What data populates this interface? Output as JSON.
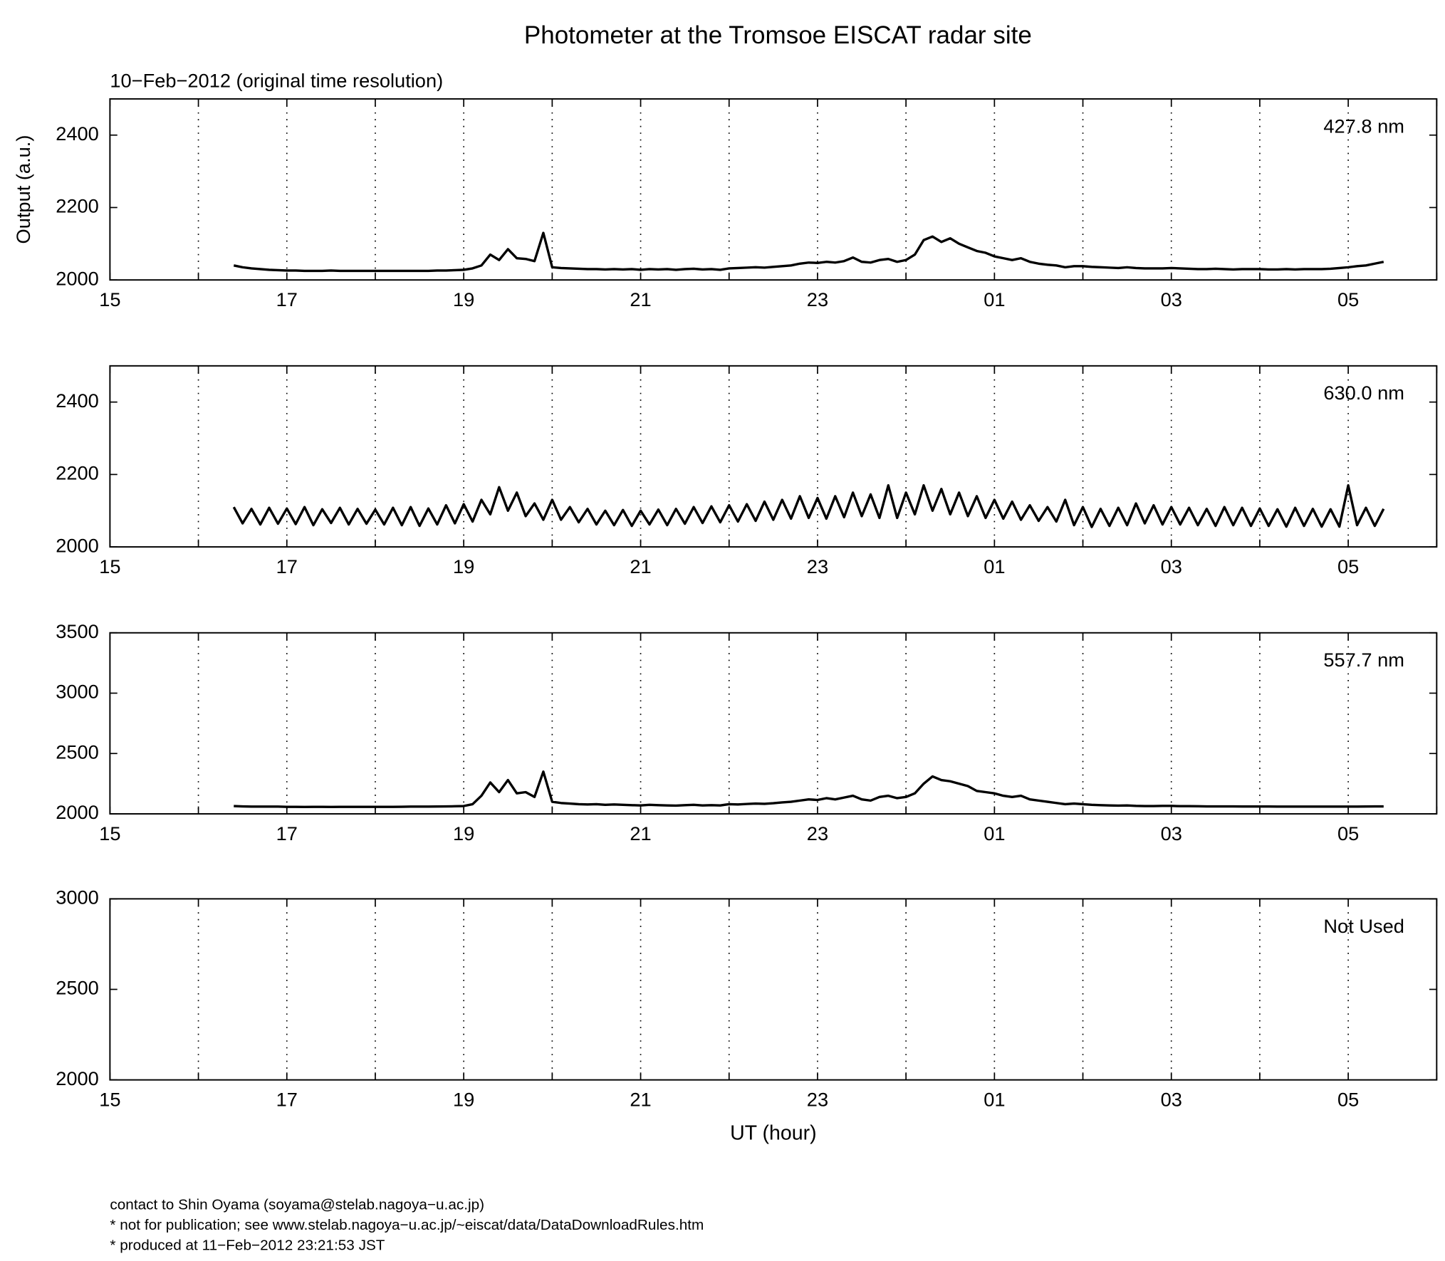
{
  "title": "Photometer at the Tromsoe EISCAT radar site",
  "subtitle": "10−Feb−2012 (original time resolution)",
  "footer": [
    "contact to Shin Oyama (soyama@stelab.nagoya−u.ac.jp)",
    "* not for publication; see www.stelab.nagoya−u.ac.jp/~eiscat/data/DataDownloadRules.htm",
    "* produced at 11−Feb−2012 23:21:53 JST"
  ],
  "chart_data": [
    {
      "type": "line",
      "ylabel": "Output (a.u.)",
      "annotation": "427.8 nm",
      "grid": true,
      "xlim": [
        15,
        30
      ],
      "ylim": [
        2000,
        2500
      ],
      "yticks": [
        2000,
        2200,
        2400
      ],
      "xticks": [
        15,
        {
          "value": 16,
          "label": null
        },
        17,
        {
          "value": 18,
          "label": null
        },
        19,
        {
          "value": 20,
          "label": null
        },
        21,
        {
          "value": 22,
          "label": null
        },
        23,
        {
          "value": 24,
          "label": null
        },
        {
          "value": 25,
          "label": "01"
        },
        {
          "value": 26,
          "label": null
        },
        {
          "value": 27,
          "label": "03"
        },
        {
          "value": 28,
          "label": null
        },
        {
          "value": 29,
          "label": "05"
        },
        {
          "value": 30,
          "label": null
        }
      ],
      "x": [
        16.4,
        16.5,
        16.6,
        16.7,
        16.8,
        16.9,
        17.0,
        17.1,
        17.2,
        17.3,
        17.4,
        17.5,
        17.6,
        17.7,
        17.8,
        17.9,
        18.0,
        18.1,
        18.2,
        18.3,
        18.4,
        18.5,
        18.6,
        18.7,
        18.8,
        18.9,
        19.0,
        19.1,
        19.2,
        19.3,
        19.4,
        19.5,
        19.6,
        19.7,
        19.8,
        19.9,
        20.0,
        20.1,
        20.2,
        20.3,
        20.4,
        20.5,
        20.6,
        20.7,
        20.8,
        20.9,
        21.0,
        21.1,
        21.2,
        21.3,
        21.4,
        21.5,
        21.6,
        21.7,
        21.8,
        21.9,
        22.0,
        22.1,
        22.2,
        22.3,
        22.4,
        22.5,
        22.6,
        22.7,
        22.8,
        22.9,
        23.0,
        23.1,
        23.2,
        23.3,
        23.4,
        23.5,
        23.6,
        23.7,
        23.8,
        23.9,
        24.0,
        24.1,
        24.2,
        24.3,
        24.4,
        24.5,
        24.6,
        24.7,
        24.8,
        24.9,
        25.0,
        25.1,
        25.2,
        25.3,
        25.4,
        25.5,
        25.6,
        25.7,
        25.8,
        25.9,
        26.0,
        26.1,
        26.2,
        26.3,
        26.4,
        26.5,
        26.6,
        26.7,
        26.8,
        26.9,
        27.0,
        27.1,
        27.2,
        27.3,
        27.4,
        27.5,
        27.6,
        27.7,
        27.8,
        27.9,
        28.0,
        28.1,
        28.2,
        28.3,
        28.4,
        28.5,
        28.6,
        28.7,
        28.8,
        28.9,
        29.0,
        29.1,
        29.2,
        29.3,
        29.4
      ],
      "series": [
        {
          "color": "#000000",
          "values": [
            2040,
            2035,
            2032,
            2030,
            2028,
            2027,
            2026,
            2026,
            2025,
            2025,
            2025,
            2026,
            2025,
            2025,
            2025,
            2025,
            2025,
            2025,
            2025,
            2025,
            2025,
            2025,
            2025,
            2026,
            2026,
            2027,
            2028,
            2032,
            2040,
            2070,
            2055,
            2085,
            2060,
            2058,
            2052,
            2130,
            2035,
            2033,
            2032,
            2031,
            2030,
            2030,
            2029,
            2030,
            2029,
            2030,
            2028,
            2030,
            2029,
            2030,
            2028,
            2030,
            2031,
            2029,
            2030,
            2028,
            2032,
            2033,
            2034,
            2035,
            2034,
            2036,
            2038,
            2040,
            2045,
            2048,
            2047,
            2050,
            2048,
            2052,
            2062,
            2050,
            2048,
            2055,
            2058,
            2050,
            2055,
            2070,
            2110,
            2120,
            2105,
            2115,
            2100,
            2090,
            2080,
            2075,
            2065,
            2060,
            2055,
            2060,
            2050,
            2045,
            2042,
            2040,
            2035,
            2038,
            2038,
            2036,
            2035,
            2034,
            2033,
            2035,
            2033,
            2032,
            2032,
            2032,
            2033,
            2032,
            2031,
            2030,
            2030,
            2031,
            2030,
            2029,
            2030,
            2030,
            2030,
            2029,
            2029,
            2030,
            2029,
            2030,
            2030,
            2030,
            2031,
            2033,
            2035,
            2038,
            2040,
            2045,
            2050
          ]
        }
      ]
    },
    {
      "type": "line",
      "annotation": "630.0 nm",
      "grid": true,
      "xlim": [
        15,
        30
      ],
      "ylim": [
        2000,
        2500
      ],
      "yticks": [
        2000,
        2200,
        2400
      ],
      "xticks": [
        15,
        {
          "value": 16,
          "label": null
        },
        17,
        {
          "value": 18,
          "label": null
        },
        19,
        {
          "value": 20,
          "label": null
        },
        21,
        {
          "value": 22,
          "label": null
        },
        23,
        {
          "value": 24,
          "label": null
        },
        {
          "value": 25,
          "label": "01"
        },
        {
          "value": 26,
          "label": null
        },
        {
          "value": 27,
          "label": "03"
        },
        {
          "value": 28,
          "label": null
        },
        {
          "value": 29,
          "label": "05"
        },
        {
          "value": 30,
          "label": null
        }
      ],
      "x": [
        16.4,
        16.5,
        16.6,
        16.7,
        16.8,
        16.9,
        17.0,
        17.1,
        17.2,
        17.3,
        17.4,
        17.5,
        17.6,
        17.7,
        17.8,
        17.9,
        18.0,
        18.1,
        18.2,
        18.3,
        18.4,
        18.5,
        18.6,
        18.7,
        18.8,
        18.9,
        19.0,
        19.1,
        19.2,
        19.3,
        19.4,
        19.5,
        19.6,
        19.7,
        19.8,
        19.9,
        20.0,
        20.1,
        20.2,
        20.3,
        20.4,
        20.5,
        20.6,
        20.7,
        20.8,
        20.9,
        21.0,
        21.1,
        21.2,
        21.3,
        21.4,
        21.5,
        21.6,
        21.7,
        21.8,
        21.9,
        22.0,
        22.1,
        22.2,
        22.3,
        22.4,
        22.5,
        22.6,
        22.7,
        22.8,
        22.9,
        23.0,
        23.1,
        23.2,
        23.3,
        23.4,
        23.5,
        23.6,
        23.7,
        23.8,
        23.9,
        24.0,
        24.1,
        24.2,
        24.3,
        24.4,
        24.5,
        24.6,
        24.7,
        24.8,
        24.9,
        25.0,
        25.1,
        25.2,
        25.3,
        25.4,
        25.5,
        25.6,
        25.7,
        25.8,
        25.9,
        26.0,
        26.1,
        26.2,
        26.3,
        26.4,
        26.5,
        26.6,
        26.7,
        26.8,
        26.9,
        27.0,
        27.1,
        27.2,
        27.3,
        27.4,
        27.5,
        27.6,
        27.7,
        27.8,
        27.9,
        28.0,
        28.1,
        28.2,
        28.3,
        28.4,
        28.5,
        28.6,
        28.7,
        28.8,
        28.9,
        29.0,
        29.1,
        29.2,
        29.3,
        29.4
      ],
      "series": [
        {
          "color": "#000000",
          "values": [
            2110,
            2065,
            2105,
            2062,
            2108,
            2064,
            2106,
            2063,
            2110,
            2060,
            2104,
            2066,
            2108,
            2062,
            2105,
            2064,
            2103,
            2062,
            2108,
            2060,
            2110,
            2058,
            2106,
            2062,
            2115,
            2065,
            2118,
            2070,
            2130,
            2090,
            2165,
            2100,
            2150,
            2085,
            2120,
            2075,
            2130,
            2075,
            2110,
            2068,
            2105,
            2062,
            2100,
            2060,
            2102,
            2058,
            2100,
            2062,
            2103,
            2060,
            2105,
            2064,
            2110,
            2066,
            2112,
            2068,
            2115,
            2070,
            2118,
            2072,
            2125,
            2075,
            2130,
            2078,
            2140,
            2080,
            2135,
            2078,
            2140,
            2082,
            2150,
            2085,
            2145,
            2080,
            2170,
            2080,
            2150,
            2090,
            2170,
            2100,
            2160,
            2090,
            2150,
            2085,
            2140,
            2080,
            2130,
            2078,
            2125,
            2075,
            2115,
            2072,
            2110,
            2070,
            2130,
            2060,
            2110,
            2055,
            2105,
            2058,
            2108,
            2060,
            2120,
            2065,
            2115,
            2062,
            2110,
            2062,
            2108,
            2060,
            2105,
            2058,
            2110,
            2060,
            2108,
            2058,
            2106,
            2058,
            2104,
            2056,
            2108,
            2058,
            2105,
            2056,
            2104,
            2056,
            2170,
            2060,
            2108,
            2058,
            2105
          ]
        }
      ]
    },
    {
      "type": "line",
      "annotation": "557.7 nm",
      "grid": true,
      "xlim": [
        15,
        30
      ],
      "ylim": [
        2000,
        3500
      ],
      "yticks": [
        2000,
        2500,
        3000,
        3500
      ],
      "xticks": [
        15,
        {
          "value": 16,
          "label": null
        },
        17,
        {
          "value": 18,
          "label": null
        },
        19,
        {
          "value": 20,
          "label": null
        },
        21,
        {
          "value": 22,
          "label": null
        },
        23,
        {
          "value": 24,
          "label": null
        },
        {
          "value": 25,
          "label": "01"
        },
        {
          "value": 26,
          "label": null
        },
        {
          "value": 27,
          "label": "03"
        },
        {
          "value": 28,
          "label": null
        },
        {
          "value": 29,
          "label": "05"
        },
        {
          "value": 30,
          "label": null
        }
      ],
      "x": [
        16.4,
        16.5,
        16.6,
        16.7,
        16.8,
        16.9,
        17.0,
        17.1,
        17.2,
        17.3,
        17.4,
        17.5,
        17.6,
        17.7,
        17.8,
        17.9,
        18.0,
        18.1,
        18.2,
        18.3,
        18.4,
        18.5,
        18.6,
        18.7,
        18.8,
        18.9,
        19.0,
        19.1,
        19.2,
        19.3,
        19.4,
        19.5,
        19.6,
        19.7,
        19.8,
        19.9,
        20.0,
        20.1,
        20.2,
        20.3,
        20.4,
        20.5,
        20.6,
        20.7,
        20.8,
        20.9,
        21.0,
        21.1,
        21.2,
        21.3,
        21.4,
        21.5,
        21.6,
        21.7,
        21.8,
        21.9,
        22.0,
        22.1,
        22.2,
        22.3,
        22.4,
        22.5,
        22.6,
        22.7,
        22.8,
        22.9,
        23.0,
        23.1,
        23.2,
        23.3,
        23.4,
        23.5,
        23.6,
        23.7,
        23.8,
        23.9,
        24.0,
        24.1,
        24.2,
        24.3,
        24.4,
        24.5,
        24.6,
        24.7,
        24.8,
        24.9,
        25.0,
        25.1,
        25.2,
        25.3,
        25.4,
        25.5,
        25.6,
        25.7,
        25.8,
        25.9,
        26.0,
        26.1,
        26.2,
        26.3,
        26.4,
        26.5,
        26.6,
        26.7,
        26.8,
        26.9,
        27.0,
        27.1,
        27.2,
        27.3,
        27.4,
        27.5,
        27.6,
        27.7,
        27.8,
        27.9,
        28.0,
        28.1,
        28.2,
        28.3,
        28.4,
        28.5,
        28.6,
        28.7,
        28.8,
        28.9,
        29.0,
        29.1,
        29.2,
        29.3,
        29.4
      ],
      "series": [
        {
          "color": "#000000",
          "values": [
            2065,
            2062,
            2060,
            2060,
            2060,
            2060,
            2058,
            2058,
            2057,
            2058,
            2058,
            2057,
            2058,
            2058,
            2058,
            2058,
            2058,
            2058,
            2058,
            2059,
            2060,
            2060,
            2060,
            2061,
            2062,
            2063,
            2065,
            2080,
            2150,
            2260,
            2180,
            2280,
            2170,
            2180,
            2140,
            2350,
            2100,
            2090,
            2085,
            2080,
            2078,
            2080,
            2075,
            2078,
            2075,
            2072,
            2070,
            2075,
            2072,
            2070,
            2068,
            2072,
            2075,
            2070,
            2072,
            2070,
            2080,
            2078,
            2082,
            2085,
            2083,
            2088,
            2095,
            2100,
            2110,
            2120,
            2115,
            2130,
            2120,
            2135,
            2150,
            2120,
            2110,
            2140,
            2150,
            2130,
            2140,
            2170,
            2250,
            2310,
            2280,
            2270,
            2250,
            2230,
            2190,
            2180,
            2170,
            2150,
            2140,
            2150,
            2120,
            2110,
            2100,
            2090,
            2080,
            2085,
            2080,
            2075,
            2072,
            2070,
            2068,
            2070,
            2066,
            2065,
            2065,
            2066,
            2066,
            2064,
            2064,
            2063,
            2062,
            2062,
            2062,
            2062,
            2061,
            2061,
            2061,
            2061,
            2060,
            2060,
            2060,
            2060,
            2060,
            2060,
            2060,
            2060,
            2060,
            2060,
            2061,
            2062,
            2062
          ]
        }
      ]
    },
    {
      "type": "line",
      "annotation": "Not Used",
      "xlabel": "UT (hour)",
      "grid": true,
      "xlim": [
        15,
        30
      ],
      "ylim": [
        2000,
        3000
      ],
      "yticks": [
        2000,
        2500,
        3000
      ],
      "xticks": [
        15,
        {
          "value": 16,
          "label": null
        },
        17,
        {
          "value": 18,
          "label": null
        },
        19,
        {
          "value": 20,
          "label": null
        },
        21,
        {
          "value": 22,
          "label": null
        },
        23,
        {
          "value": 24,
          "label": null
        },
        {
          "value": 25,
          "label": "01"
        },
        {
          "value": 26,
          "label": null
        },
        {
          "value": 27,
          "label": "03"
        },
        {
          "value": 28,
          "label": null
        },
        {
          "value": 29,
          "label": "05"
        },
        {
          "value": 30,
          "label": null
        }
      ],
      "series": []
    }
  ]
}
